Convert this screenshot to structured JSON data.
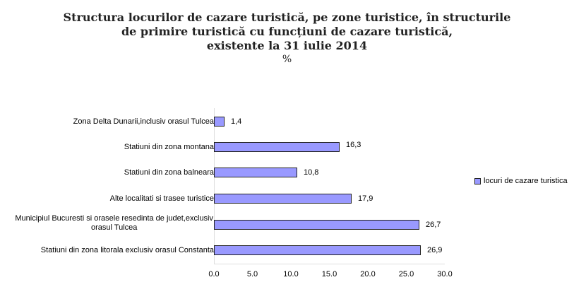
{
  "chart_data": {
    "type": "bar",
    "orientation": "horizontal",
    "title": "Structura locurilor de cazare turistică, pe zone turistice, în  structurile de primire turistică cu funcțiuni de cazare turistică, existente la 31 iulie 2014",
    "title_lines": [
      "Structura locurilor de cazare turistică, pe zone turistice, în  structurile",
      "de primire turistică cu funcțiuni de cazare turistică,",
      "existente la 31 iulie 2014"
    ],
    "unit": "%",
    "categories": [
      "Zona Delta Dunarii,inclusiv  orasul Tulcea",
      "Statiuni din zona montana",
      "Statiuni din zona balneara",
      "Alte localitati si trasee turistice",
      "Municipiul Bucuresti si orasele resedinta de judet,exclusiv orasul Tulcea",
      "Statiuni din zona litorala exclusiv orasul Constanta"
    ],
    "category_lines": [
      [
        "Zona Delta Dunarii,inclusiv  orasul Tulcea"
      ],
      [
        "Statiuni din zona montana"
      ],
      [
        "Statiuni din zona balneara"
      ],
      [
        "Alte localitati si trasee turistice"
      ],
      [
        "Municipiul Bucuresti si orasele resedinta de judet,exclusiv",
        "orasul Tulcea"
      ],
      [
        "Statiuni din zona litorala exclusiv orasul Constanta"
      ]
    ],
    "series": [
      {
        "name": "locuri de cazare turistica",
        "color": "#9999ff",
        "values": [
          1.4,
          16.3,
          10.8,
          17.9,
          26.7,
          26.9
        ]
      }
    ],
    "value_labels": [
      "1,4",
      "16,3",
      "10,8",
      "17,9",
      "26,7",
      "26,9"
    ],
    "xlabel": "",
    "ylabel": "",
    "xlim": [
      0,
      30
    ],
    "x_ticks": [
      "0.0",
      "5.0",
      "10.0",
      "15.0",
      "20.0",
      "25.0",
      "30.0"
    ],
    "grid": false,
    "legend_position": "right"
  }
}
